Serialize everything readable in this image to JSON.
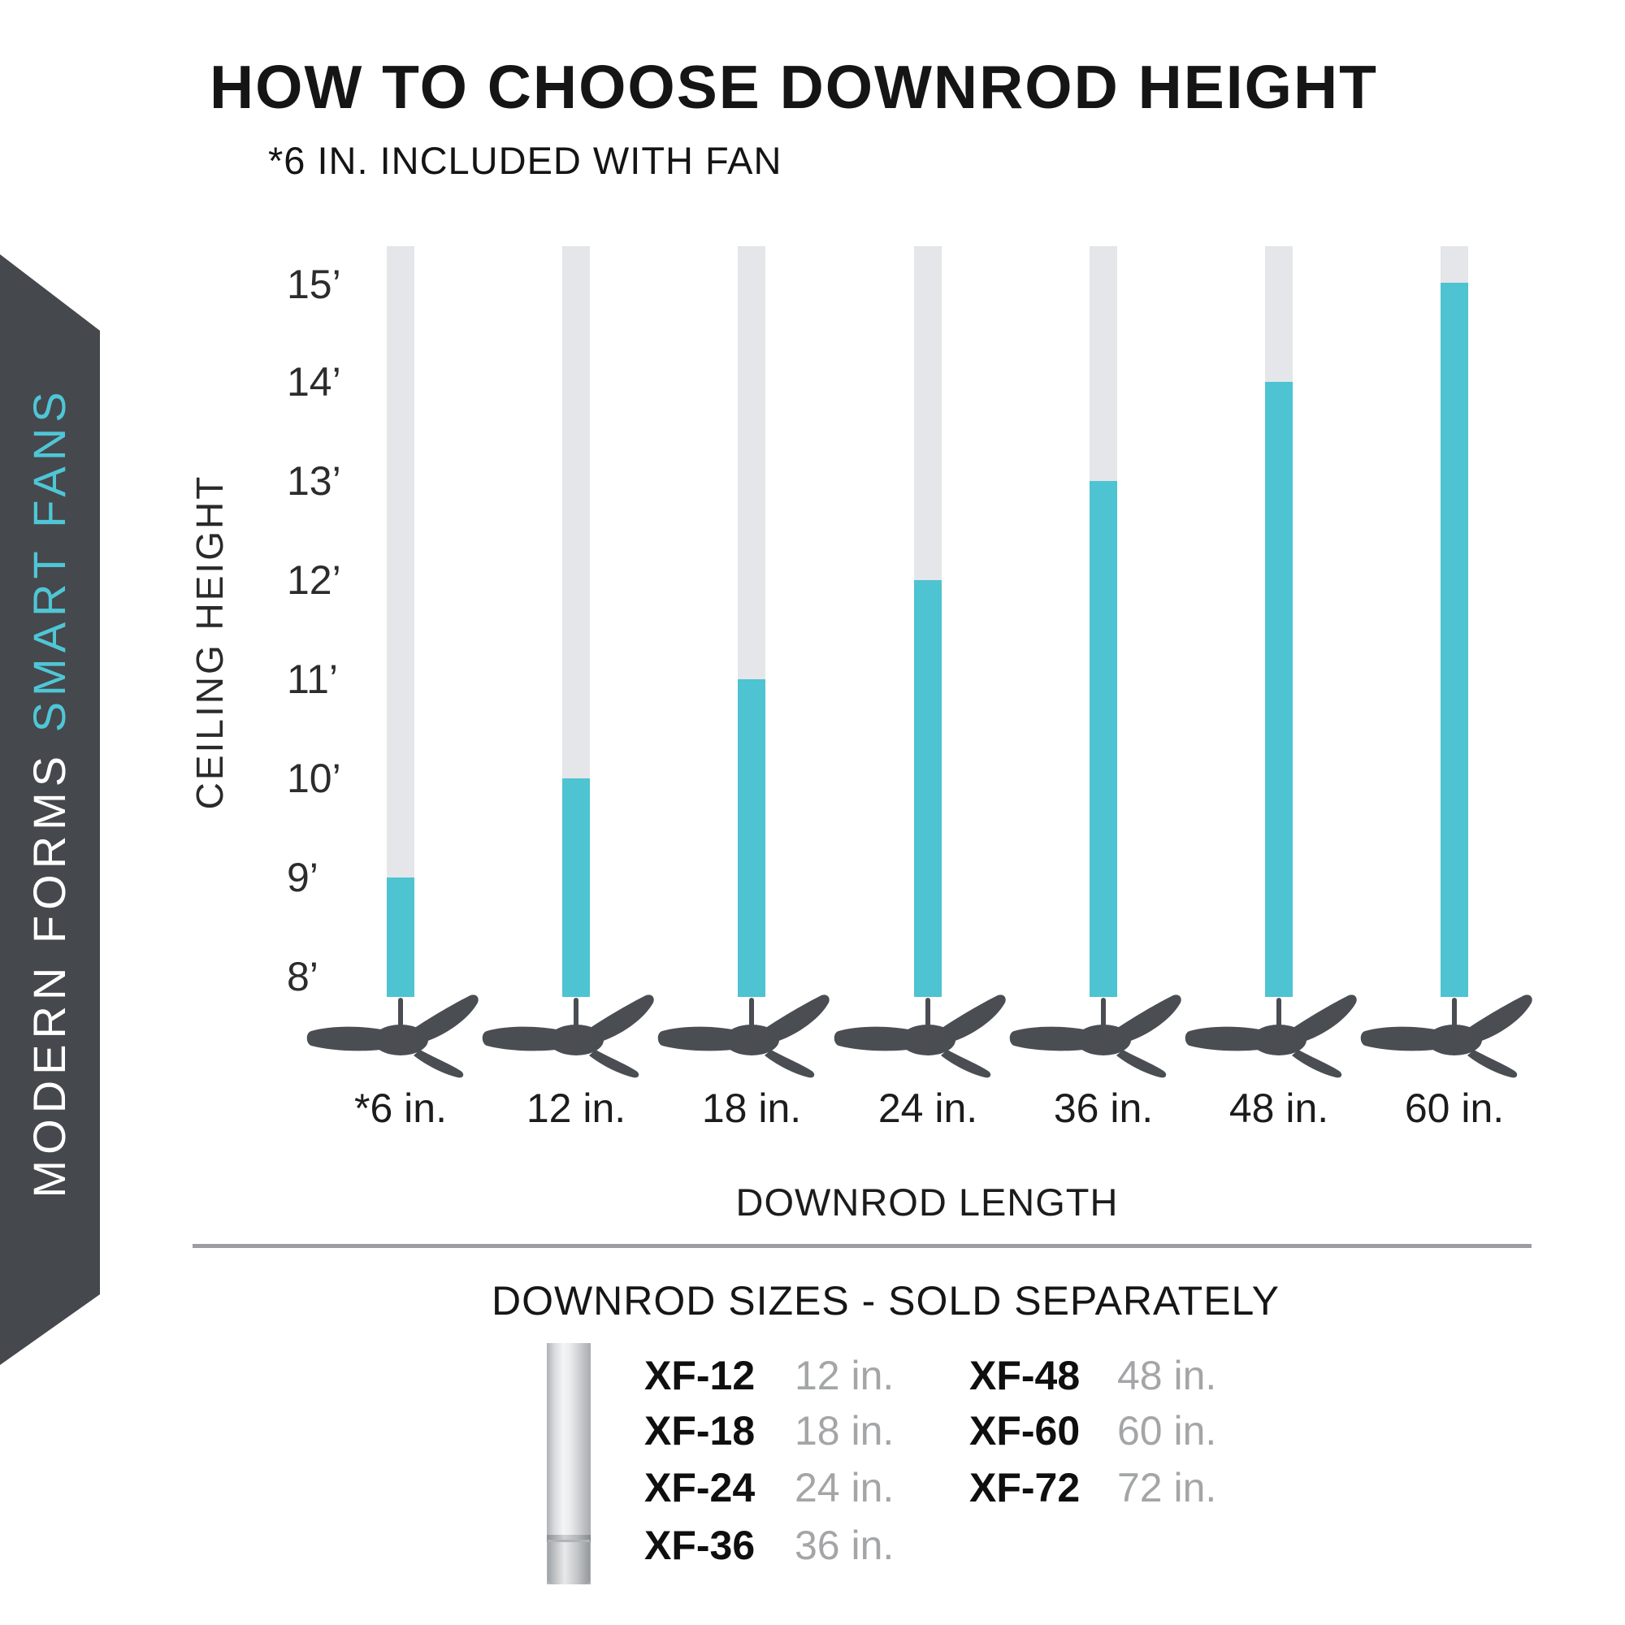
{
  "title": "HOW TO CHOOSE DOWNROD HEIGHT",
  "subtitle": "*6 IN. INCLUDED WITH FAN",
  "sidebar": {
    "brand_white": "MODERN FORMS ",
    "brand_teal": "SMART FANS",
    "bg_color": "#45484C",
    "teal_color": "#4FC6D6"
  },
  "chart_data": {
    "type": "bar",
    "title": "HOW TO CHOOSE DOWNROD HEIGHT",
    "note": "*6 IN. INCLUDED WITH FAN",
    "xlabel": "DOWNROD LENGTH",
    "ylabel": "CEILING HEIGHT",
    "categories": [
      "*6 in.",
      "12 in.",
      "18 in.",
      "24 in.",
      "36 in.",
      "48 in.",
      "60 in."
    ],
    "series": [
      {
        "name": "Recommended ceiling height (ft)",
        "values": [
          9,
          10,
          11,
          12,
          13,
          14,
          15
        ]
      }
    ],
    "y_ticks": [
      "15’",
      "14’",
      "13’",
      "12’",
      "11’",
      "10’",
      "9’",
      "8’"
    ],
    "ylim": [
      8,
      15
    ],
    "grid": false,
    "legend": "none",
    "bar_fill_color": "#4EC3D1",
    "bar_track_color": "#E4E6E9",
    "fan_color": "#4A4E53"
  },
  "downrod_sizes": {
    "heading": "DOWNROD SIZES - SOLD SEPARATELY",
    "col1": [
      {
        "code": "XF-12",
        "length": "12 in."
      },
      {
        "code": "XF-18",
        "length": "18 in."
      },
      {
        "code": "XF-24",
        "length": "24 in."
      },
      {
        "code": "XF-36",
        "length": "36 in."
      }
    ],
    "col2": [
      {
        "code": "XF-48",
        "length": "48 in."
      },
      {
        "code": "XF-60",
        "length": "60 in."
      },
      {
        "code": "XF-72",
        "length": "72 in."
      }
    ]
  }
}
